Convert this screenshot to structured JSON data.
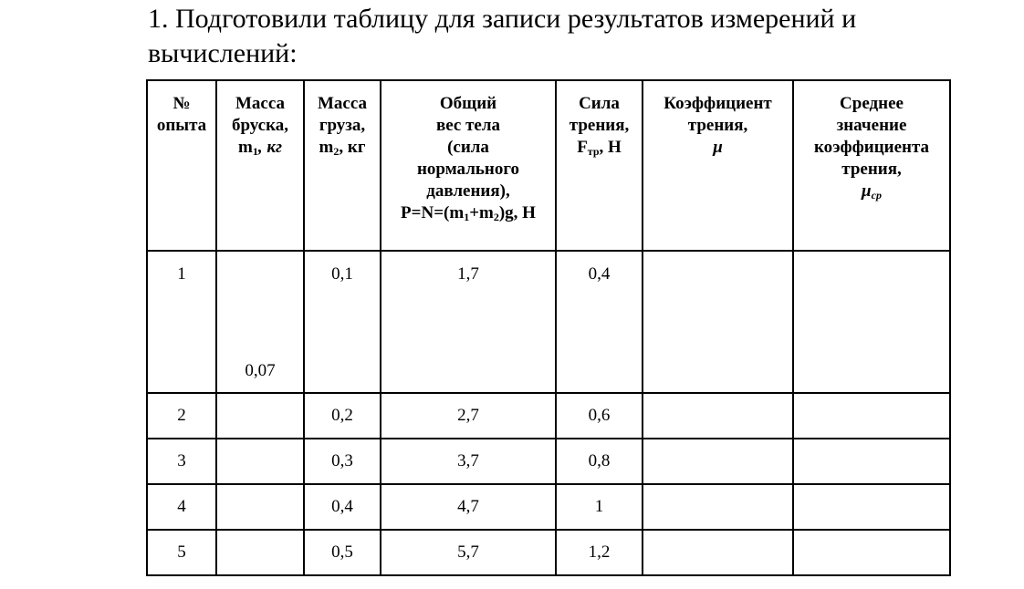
{
  "title": "1. Подготовили таблицу для записи результатов измерений и вычислений:",
  "table": {
    "header": [
      {
        "lines": [
          "№",
          "опыта"
        ]
      },
      {
        "lines": [
          "Масса",
          "бруска,"
        ],
        "symbol": "m",
        "index": "1",
        "unit": ", кг"
      },
      {
        "lines": [
          "Масса",
          "груза,"
        ],
        "symbol": "m",
        "index": "2",
        "unit": ", кг"
      },
      {
        "lines": [
          "Общий",
          "вес тела",
          "(сила",
          "нормального",
          "давления),"
        ],
        "formula": [
          "P=N=(m",
          "1",
          "+m",
          "2",
          ")g, Н"
        ]
      },
      {
        "lines": [
          "Сила",
          "трения,"
        ],
        "symbol": "F",
        "index": "тр",
        "unit": ", Н"
      },
      {
        "lines": [
          "Коэффициент",
          "трения,"
        ],
        "symbol": "μ"
      },
      {
        "lines": [
          "Среднее",
          "значение",
          "коэффициента",
          "трения,"
        ],
        "symbol": "μ",
        "index": "ср"
      }
    ],
    "rows": [
      {
        "number": "1",
        "m1": "0,07",
        "m2": "0,1",
        "weight": "1,7",
        "friction": "0,4"
      },
      {
        "number": "2",
        "m2": "0,2",
        "weight": "2,7",
        "friction": "0,6"
      },
      {
        "number": "3",
        "m2": "0,3",
        "weight": "3,7",
        "friction": "0,8"
      },
      {
        "number": "4",
        "m2": "0,4",
        "weight": "4,7",
        "friction": "1"
      },
      {
        "number": "5",
        "m2": "0,5",
        "weight": "5,7",
        "friction": "1,2"
      }
    ]
  }
}
